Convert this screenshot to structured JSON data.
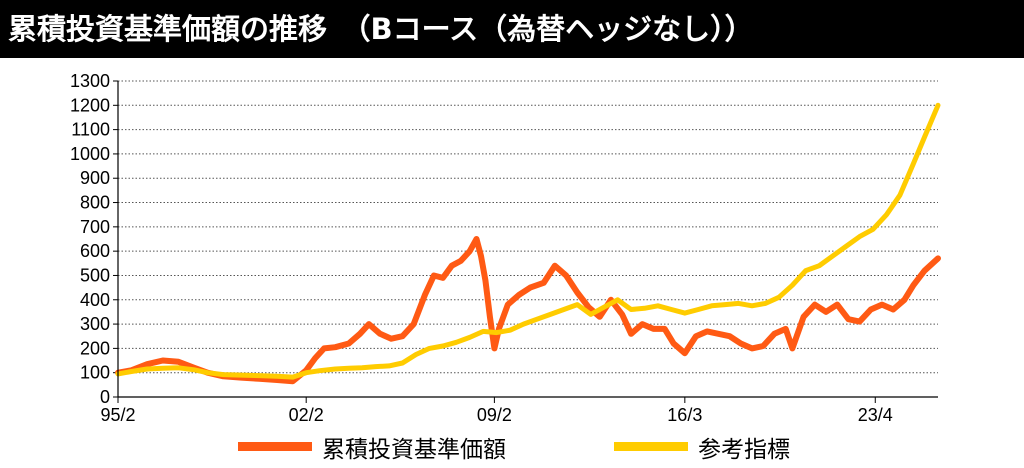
{
  "title": "累積投資基準価額の推移　（Bコース（為替ヘッジなし））",
  "chart_data": {
    "type": "line",
    "title": "累積投資基準価額の推移　（Bコース（為替ヘッジなし））",
    "xlabel": "",
    "ylabel": "",
    "ylim": [
      0,
      1300
    ],
    "yticks": [
      0,
      100,
      200,
      300,
      400,
      500,
      600,
      700,
      800,
      900,
      1000,
      1100,
      1200,
      1300
    ],
    "xlim": [
      "1995-02",
      "2025-08"
    ],
    "xticks": [
      {
        "label": "95/2",
        "date": "1995-02"
      },
      {
        "label": "02/2",
        "date": "2002-02"
      },
      {
        "label": "09/2",
        "date": "2009-02"
      },
      {
        "label": "16/3",
        "date": "2016-03"
      },
      {
        "label": "23/4",
        "date": "2023-04"
      }
    ],
    "grid": "horizontal dotted",
    "legend": "bottom",
    "series": [
      {
        "name": "累積投資基準価額",
        "color": "#ff5a14",
        "points": [
          [
            "1995-02",
            100
          ],
          [
            "1995-08",
            110
          ],
          [
            "1996-03",
            135
          ],
          [
            "1996-10",
            150
          ],
          [
            "1997-05",
            145
          ],
          [
            "1997-12",
            120
          ],
          [
            "1998-06",
            100
          ],
          [
            "1999-01",
            85
          ],
          [
            "1999-09",
            80
          ],
          [
            "2000-05",
            75
          ],
          [
            "2001-01",
            70
          ],
          [
            "2001-08",
            65
          ],
          [
            "2002-02",
            110
          ],
          [
            "2002-06",
            160
          ],
          [
            "2002-10",
            200
          ],
          [
            "2003-03",
            205
          ],
          [
            "2003-09",
            220
          ],
          [
            "2004-02",
            260
          ],
          [
            "2004-06",
            300
          ],
          [
            "2004-11",
            260
          ],
          [
            "2005-04",
            240
          ],
          [
            "2005-09",
            250
          ],
          [
            "2006-02",
            300
          ],
          [
            "2006-07",
            420
          ],
          [
            "2006-11",
            500
          ],
          [
            "2007-03",
            490
          ],
          [
            "2007-07",
            540
          ],
          [
            "2007-11",
            560
          ],
          [
            "2008-03",
            600
          ],
          [
            "2008-06",
            650
          ],
          [
            "2008-08",
            580
          ],
          [
            "2008-10",
            480
          ],
          [
            "2008-12",
            330
          ],
          [
            "2009-02",
            200
          ],
          [
            "2009-04",
            280
          ],
          [
            "2009-08",
            380
          ],
          [
            "2010-01",
            420
          ],
          [
            "2010-06",
            450
          ],
          [
            "2010-12",
            470
          ],
          [
            "2011-05",
            540
          ],
          [
            "2011-10",
            500
          ],
          [
            "2012-03",
            430
          ],
          [
            "2012-08",
            370
          ],
          [
            "2013-01",
            330
          ],
          [
            "2013-06",
            400
          ],
          [
            "2013-11",
            340
          ],
          [
            "2014-03",
            260
          ],
          [
            "2014-08",
            300
          ],
          [
            "2015-01",
            280
          ],
          [
            "2015-06",
            280
          ],
          [
            "2015-10",
            220
          ],
          [
            "2016-03",
            180
          ],
          [
            "2016-08",
            250
          ],
          [
            "2017-01",
            270
          ],
          [
            "2017-06",
            260
          ],
          [
            "2017-11",
            250
          ],
          [
            "2018-04",
            220
          ],
          [
            "2018-09",
            200
          ],
          [
            "2019-02",
            210
          ],
          [
            "2019-07",
            260
          ],
          [
            "2019-12",
            280
          ],
          [
            "2020-03",
            200
          ],
          [
            "2020-08",
            330
          ],
          [
            "2021-01",
            380
          ],
          [
            "2021-06",
            350
          ],
          [
            "2021-11",
            380
          ],
          [
            "2022-04",
            320
          ],
          [
            "2022-09",
            310
          ],
          [
            "2023-02",
            360
          ],
          [
            "2023-07",
            380
          ],
          [
            "2023-12",
            360
          ],
          [
            "2024-05",
            400
          ],
          [
            "2024-09",
            460
          ],
          [
            "2025-02",
            520
          ],
          [
            "2025-08",
            570
          ]
        ]
      },
      {
        "name": "参考指標",
        "color": "#ffcc00",
        "points": [
          [
            "1995-02",
            95
          ],
          [
            "1995-08",
            105
          ],
          [
            "1996-03",
            115
          ],
          [
            "1996-10",
            118
          ],
          [
            "1997-05",
            120
          ],
          [
            "1997-12",
            112
          ],
          [
            "1998-06",
            100
          ],
          [
            "1999-01",
            92
          ],
          [
            "1999-09",
            90
          ],
          [
            "2000-05",
            88
          ],
          [
            "2001-01",
            85
          ],
          [
            "2001-08",
            82
          ],
          [
            "2002-02",
            100
          ],
          [
            "2002-08",
            108
          ],
          [
            "2003-03",
            115
          ],
          [
            "2003-09",
            118
          ],
          [
            "2004-03",
            120
          ],
          [
            "2004-09",
            125
          ],
          [
            "2005-03",
            128
          ],
          [
            "2005-09",
            140
          ],
          [
            "2006-03",
            175
          ],
          [
            "2006-09",
            200
          ],
          [
            "2007-03",
            210
          ],
          [
            "2007-09",
            225
          ],
          [
            "2008-03",
            245
          ],
          [
            "2008-09",
            270
          ],
          [
            "2009-03",
            265
          ],
          [
            "2009-09",
            275
          ],
          [
            "2010-03",
            300
          ],
          [
            "2010-09",
            320
          ],
          [
            "2011-03",
            340
          ],
          [
            "2011-09",
            360
          ],
          [
            "2012-03",
            380
          ],
          [
            "2012-09",
            340
          ],
          [
            "2013-03",
            370
          ],
          [
            "2013-09",
            400
          ],
          [
            "2014-03",
            360
          ],
          [
            "2014-09",
            365
          ],
          [
            "2015-03",
            375
          ],
          [
            "2015-09",
            360
          ],
          [
            "2016-03",
            345
          ],
          [
            "2016-09",
            360
          ],
          [
            "2017-03",
            375
          ],
          [
            "2017-09",
            380
          ],
          [
            "2018-03",
            385
          ],
          [
            "2018-09",
            375
          ],
          [
            "2019-03",
            385
          ],
          [
            "2019-09",
            410
          ],
          [
            "2020-03",
            460
          ],
          [
            "2020-09",
            520
          ],
          [
            "2021-03",
            540
          ],
          [
            "2021-09",
            580
          ],
          [
            "2022-03",
            620
          ],
          [
            "2022-09",
            660
          ],
          [
            "2023-03",
            690
          ],
          [
            "2023-09",
            750
          ],
          [
            "2024-03",
            830
          ],
          [
            "2024-09",
            960
          ],
          [
            "2025-02",
            1070
          ],
          [
            "2025-08",
            1200
          ]
        ]
      }
    ]
  }
}
